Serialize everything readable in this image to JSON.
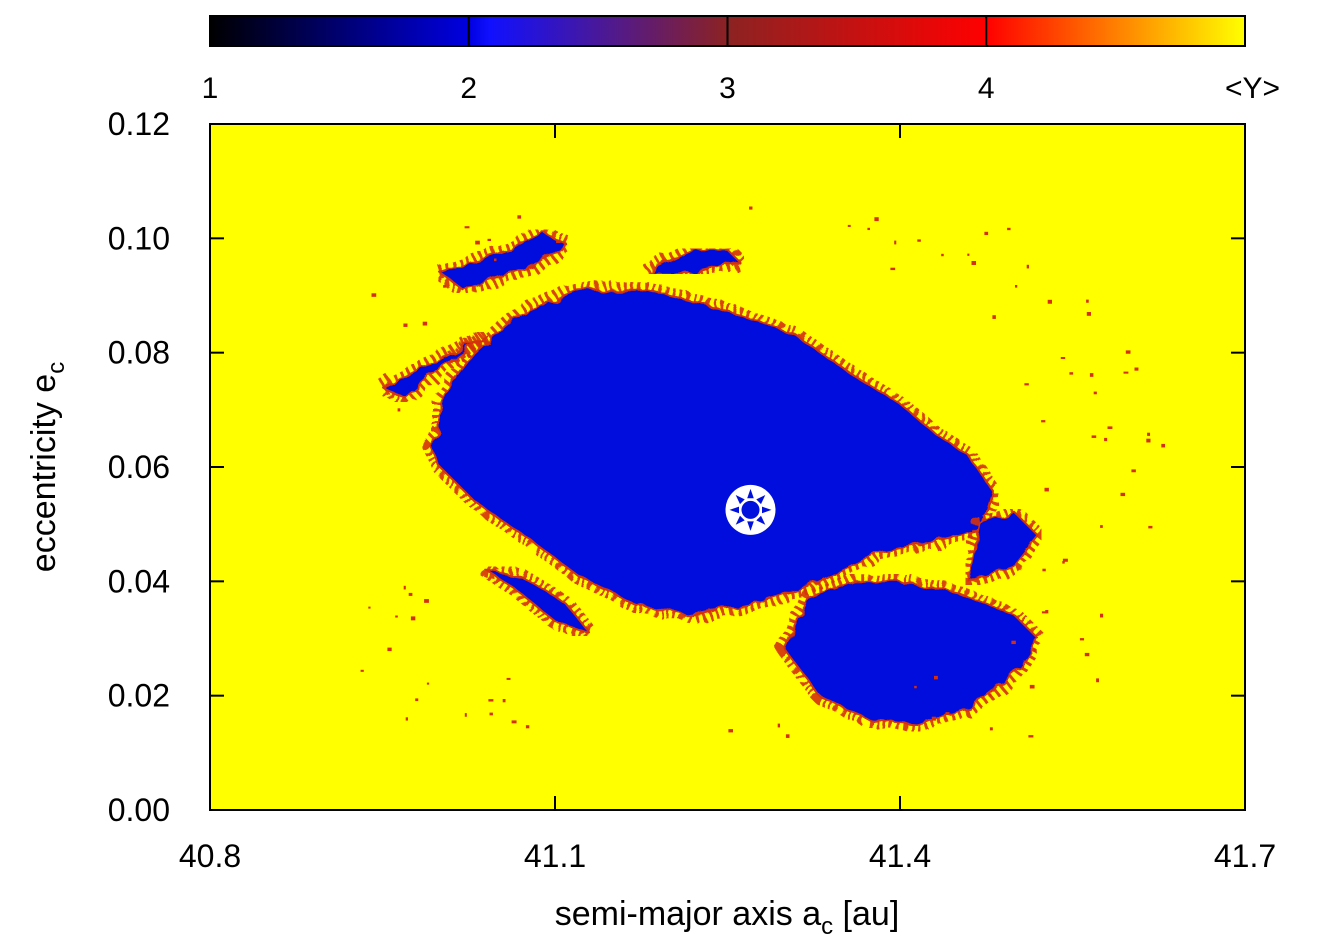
{
  "chart_data": {
    "type": "heatmap",
    "title": "",
    "xlabel": {
      "text": "semi-major axis a",
      "subscript": "c",
      "suffix": " [au]"
    },
    "ylabel": {
      "text": "eccentricity e",
      "subscript": "c"
    },
    "xlim": [
      40.8,
      41.7
    ],
    "ylim": [
      0.0,
      0.12
    ],
    "x_ticks": [
      "40.8",
      "41.1",
      "41.4",
      "41.7"
    ],
    "x_tick_values": [
      40.8,
      41.1,
      41.4,
      41.7
    ],
    "y_ticks": [
      "0.00",
      "0.02",
      "0.04",
      "0.06",
      "0.08",
      "0.10",
      "0.12"
    ],
    "y_tick_values": [
      0.0,
      0.02,
      0.04,
      0.06,
      0.08,
      0.1,
      0.12
    ],
    "colorbar": {
      "label": "<Y>",
      "ticks": [
        "1",
        "2",
        "3",
        "4"
      ],
      "tick_values": [
        1,
        2,
        3,
        4
      ],
      "range": [
        1,
        5
      ],
      "placement": "top",
      "colors": [
        "#000000",
        "#0000e0",
        "#1010ff",
        "#8c2222",
        "#ff0000",
        "#ffff00"
      ]
    },
    "background_color": "#ffff00",
    "regular_color": "#0010dd",
    "chaotic_edge_color": "#d43010",
    "marker": {
      "x": 41.27,
      "y": 0.0525,
      "color": "#ffffff",
      "name": "nominal-orbit-marker"
    },
    "regions": {
      "main_island": [
        [
          41.0,
          0.066
        ],
        [
          40.99,
          0.064
        ],
        [
          41.0,
          0.06
        ],
        [
          41.03,
          0.054
        ],
        [
          41.08,
          0.047
        ],
        [
          41.12,
          0.041
        ],
        [
          41.17,
          0.036
        ],
        [
          41.22,
          0.034
        ],
        [
          41.27,
          0.036
        ],
        [
          41.32,
          0.039
        ],
        [
          41.35,
          0.042
        ],
        [
          41.38,
          0.045
        ],
        [
          41.43,
          0.047
        ],
        [
          41.47,
          0.049
        ],
        [
          41.48,
          0.056
        ],
        [
          41.46,
          0.062
        ],
        [
          41.43,
          0.066
        ],
        [
          41.4,
          0.071
        ],
        [
          41.36,
          0.076
        ],
        [
          41.31,
          0.083
        ],
        [
          41.24,
          0.088
        ],
        [
          41.18,
          0.091
        ],
        [
          41.12,
          0.091
        ],
        [
          41.07,
          0.087
        ],
        [
          41.03,
          0.08
        ],
        [
          41.0,
          0.072
        ]
      ],
      "lower_right_island": [
        [
          41.3,
          0.028
        ],
        [
          41.33,
          0.02
        ],
        [
          41.37,
          0.016
        ],
        [
          41.42,
          0.015
        ],
        [
          41.46,
          0.018
        ],
        [
          41.5,
          0.024
        ],
        [
          41.52,
          0.03
        ],
        [
          41.5,
          0.034
        ],
        [
          41.45,
          0.038
        ],
        [
          41.4,
          0.04
        ],
        [
          41.36,
          0.04
        ],
        [
          41.32,
          0.037
        ]
      ],
      "right_lobe": [
        [
          41.46,
          0.04
        ],
        [
          41.5,
          0.043
        ],
        [
          41.52,
          0.048
        ],
        [
          41.5,
          0.052
        ],
        [
          41.47,
          0.05
        ]
      ],
      "left_finger": [
        [
          40.95,
          0.074
        ],
        [
          40.98,
          0.077
        ],
        [
          41.04,
          0.083
        ],
        [
          41.01,
          0.079
        ],
        [
          40.97,
          0.072
        ]
      ],
      "top_left_island": [
        [
          41.0,
          0.094
        ],
        [
          41.06,
          0.098
        ],
        [
          41.09,
          0.101
        ],
        [
          41.11,
          0.099
        ],
        [
          41.08,
          0.095
        ],
        [
          41.02,
          0.091
        ]
      ],
      "top_island": [
        [
          41.18,
          0.094
        ],
        [
          41.22,
          0.098
        ],
        [
          41.25,
          0.098
        ],
        [
          41.26,
          0.096
        ],
        [
          41.22,
          0.094
        ]
      ],
      "lower_left_island": [
        [
          41.04,
          0.042
        ],
        [
          41.07,
          0.038
        ],
        [
          41.1,
          0.033
        ],
        [
          41.13,
          0.031
        ],
        [
          41.11,
          0.036
        ],
        [
          41.07,
          0.041
        ]
      ]
    }
  }
}
